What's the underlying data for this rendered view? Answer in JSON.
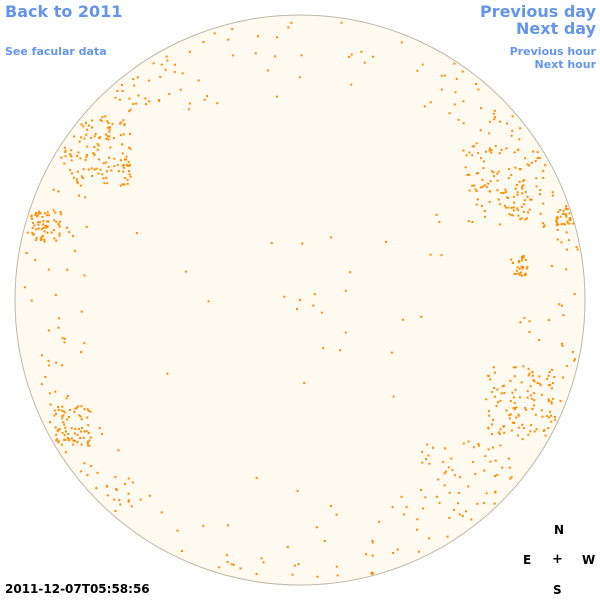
{
  "nav": {
    "back": "Back to 2011",
    "facular": "See facular data",
    "previous_day": "Previous day",
    "next_day": "Next day",
    "previous_hour": "Previous hour",
    "next_hour": "Next hour"
  },
  "timestamp": "2011-12-07T05:58:56",
  "compass": {
    "n": "N",
    "e": "E",
    "center": "+",
    "w": "W",
    "s": "S"
  },
  "colors": {
    "link": "#6495ed",
    "disk_fill": "#fffaf0",
    "disk_stroke": "#bdb8a8",
    "facula": "#ff8c00"
  }
}
